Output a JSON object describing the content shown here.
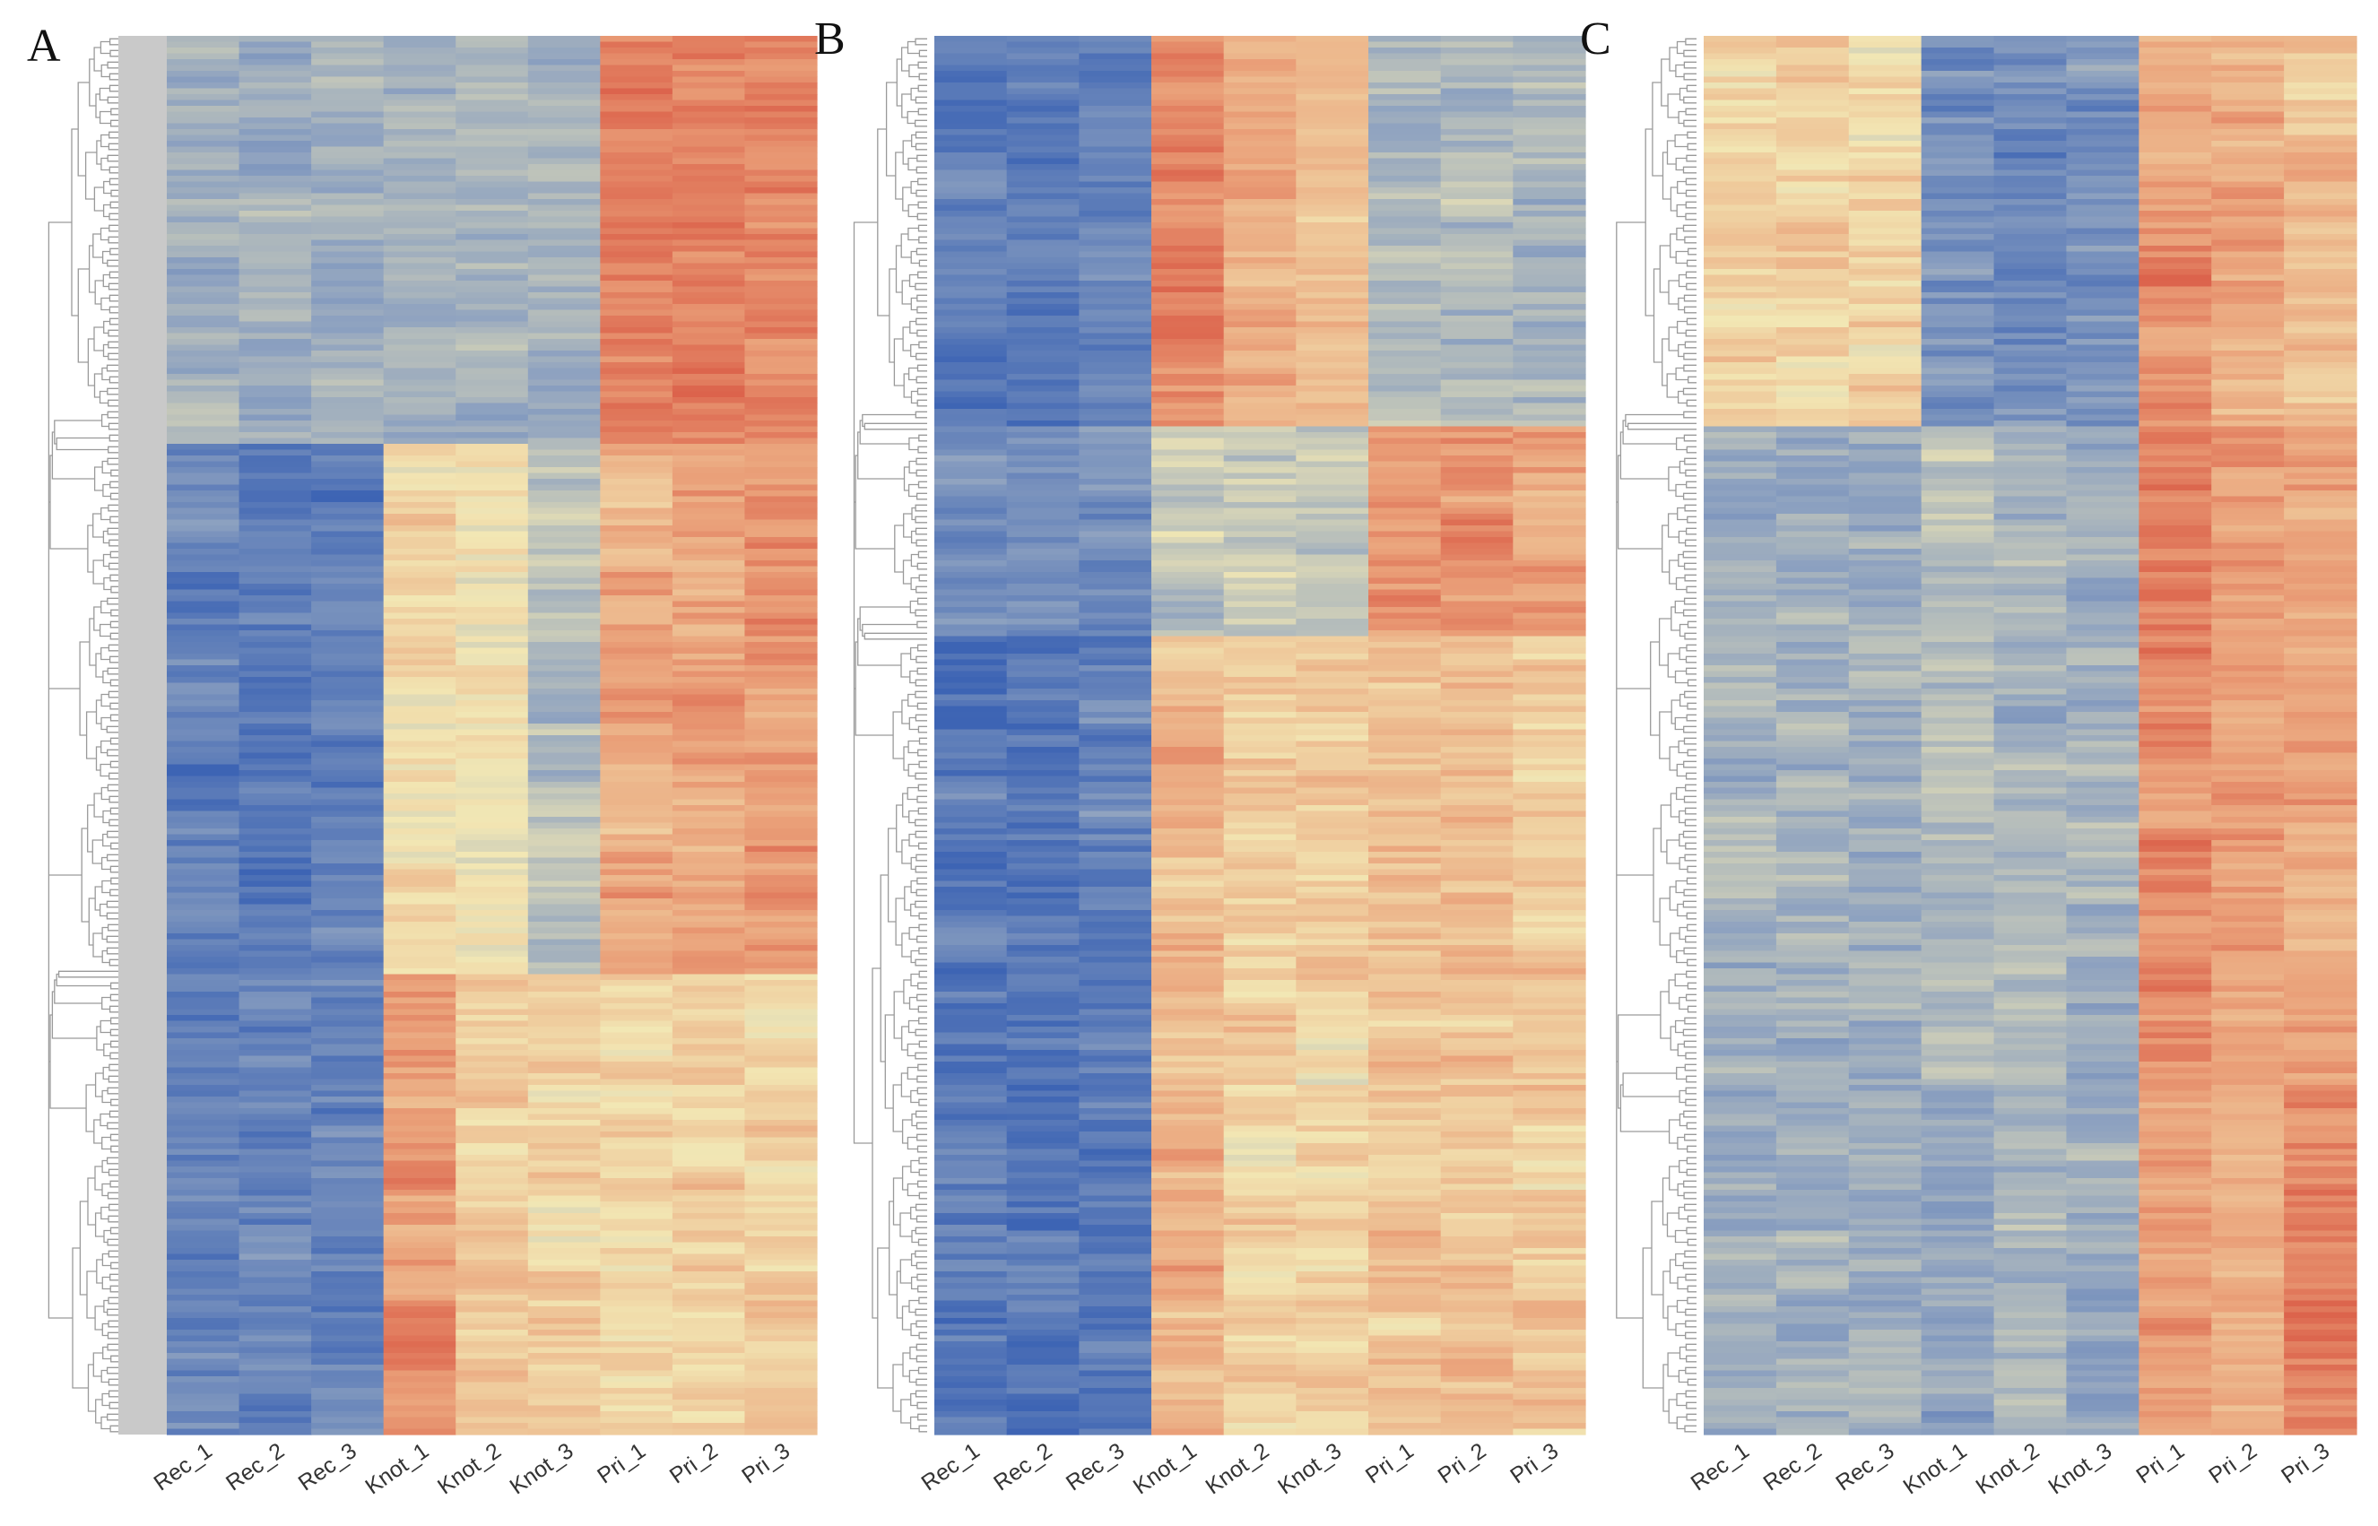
{
  "figure": {
    "type": "heatmap_panels",
    "panel_count": 3
  },
  "colors": {
    "low": "#3d64b4",
    "low_mid": "#8ea2c0",
    "mid": "#f2e7b4",
    "high_mid": "#eaa079",
    "high": "#d23b2e",
    "dendrogram": "#9a9a9a"
  },
  "chart_data": [
    {
      "type": "heatmap",
      "panel_label": "A",
      "columns": [
        "Rec_1",
        "Rec_2",
        "Rec_3",
        "Knot_1",
        "Knot_2",
        "Knot_3",
        "Pri_1",
        "Pri_2",
        "Pri_3"
      ],
      "value_scale": "row z-score (blue = low, red = high)",
      "value_range": [
        -2,
        2
      ],
      "row_count": 240,
      "row_dendrogram": true,
      "row_blocks": [
        {
          "fraction": 0.29,
          "means": [
            -0.8,
            -0.8,
            -0.8,
            -0.8,
            -0.8,
            -0.8,
            1.3,
            1.3,
            1.2
          ],
          "noise": 0.3
        },
        {
          "fraction": 0.38,
          "means": [
            -1.6,
            -1.6,
            -1.55,
            0.2,
            0.1,
            -0.6,
            0.9,
            0.9,
            1.0
          ],
          "noise": 0.4
        },
        {
          "fraction": 0.33,
          "means": [
            -1.5,
            -1.5,
            -1.5,
            1.0,
            0.4,
            0.3,
            0.3,
            0.3,
            0.3
          ],
          "noise": 0.4
        }
      ]
    },
    {
      "type": "heatmap",
      "panel_label": "B",
      "columns": [
        "Rec_1",
        "Rec_2",
        "Rec_3",
        "Knot_1",
        "Knot_2",
        "Knot_3",
        "Pri_1",
        "Pri_2",
        "Pri_3"
      ],
      "value_scale": "row z-score (blue = low, red = high)",
      "value_range": [
        -2,
        2
      ],
      "row_count": 240,
      "row_dendrogram": true,
      "row_blocks": [
        {
          "fraction": 0.28,
          "means": [
            -1.6,
            -1.6,
            -1.5,
            1.2,
            0.8,
            0.6,
            -0.7,
            -0.7,
            -0.7
          ],
          "noise": 0.35
        },
        {
          "fraction": 0.15,
          "means": [
            -1.3,
            -1.3,
            -1.3,
            -0.4,
            -0.5,
            -0.4,
            1.0,
            1.1,
            0.9
          ],
          "noise": 0.4
        },
        {
          "fraction": 0.57,
          "means": [
            -1.7,
            -1.7,
            -1.6,
            0.7,
            0.4,
            0.3,
            0.5,
            0.5,
            0.4
          ],
          "noise": 0.45
        }
      ]
    },
    {
      "type": "heatmap",
      "panel_label": "C",
      "columns": [
        "Rec_1",
        "Rec_2",
        "Rec_3",
        "Knot_1",
        "Knot_2",
        "Knot_3",
        "Pri_1",
        "Pri_2",
        "Pri_3"
      ],
      "value_scale": "row z-score (blue = low, red = high)",
      "value_range": [
        -2,
        2
      ],
      "row_count": 240,
      "row_dendrogram": true,
      "row_blocks": [
        {
          "fraction": 0.28,
          "means": [
            0.3,
            0.3,
            0.2,
            -1.3,
            -1.3,
            -1.3,
            1.0,
            0.8,
            0.5
          ],
          "noise": 0.45
        },
        {
          "fraction": 0.47,
          "means": [
            -0.8,
            -0.8,
            -0.8,
            -0.6,
            -0.7,
            -0.8,
            1.2,
            1.0,
            0.9
          ],
          "noise": 0.35
        },
        {
          "fraction": 0.25,
          "means": [
            -0.8,
            -0.8,
            -0.8,
            -0.9,
            -0.8,
            -0.9,
            1.0,
            0.8,
            1.3
          ],
          "noise": 0.35
        }
      ]
    }
  ]
}
